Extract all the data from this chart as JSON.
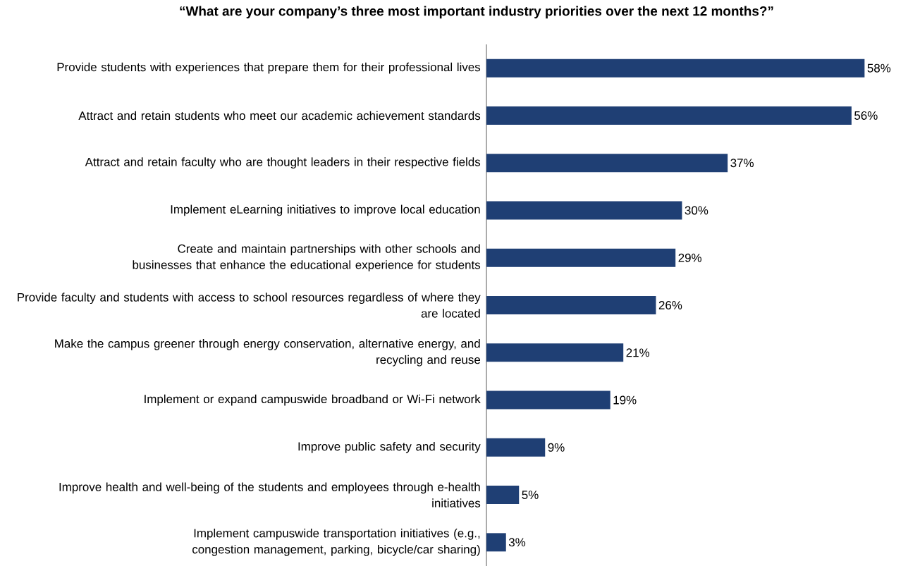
{
  "chart_data": {
    "type": "bar",
    "orientation": "horizontal",
    "title": "“What are your company’s three most important industry priorities over the next 12 months?”",
    "categories": [
      "Provide students with experiences that prepare them for their professional lives",
      "Attract and retain students who meet our academic achievement standards",
      "Attract and retain faculty who are thought leaders in their respective fields",
      "Implement eLearning initiatives to improve local education",
      "Create and maintain partnerships with other schools and businesses that enhance the educational experience for students",
      "Provide faculty and students with access to school resources regardless of where they are located",
      "Make the campus greener through energy conservation, alternative energy, and recycling and reuse",
      "Implement or expand campuswide broadband or Wi-Fi network",
      "Improve public safety and security",
      "Improve health and well-being of the students and employees through e-health initiatives",
      "Implement campuswide transportation initiatives (e.g., congestion management, parking, bicycle/car sharing)"
    ],
    "values": [
      58,
      56,
      37,
      30,
      29,
      26,
      21,
      19,
      9,
      5,
      3
    ],
    "value_labels": [
      "58%",
      "56%",
      "37%",
      "30%",
      "29%",
      "26%",
      "21%",
      "19%",
      "9%",
      "5%",
      "3%"
    ],
    "color": "#1f3f74"
  }
}
